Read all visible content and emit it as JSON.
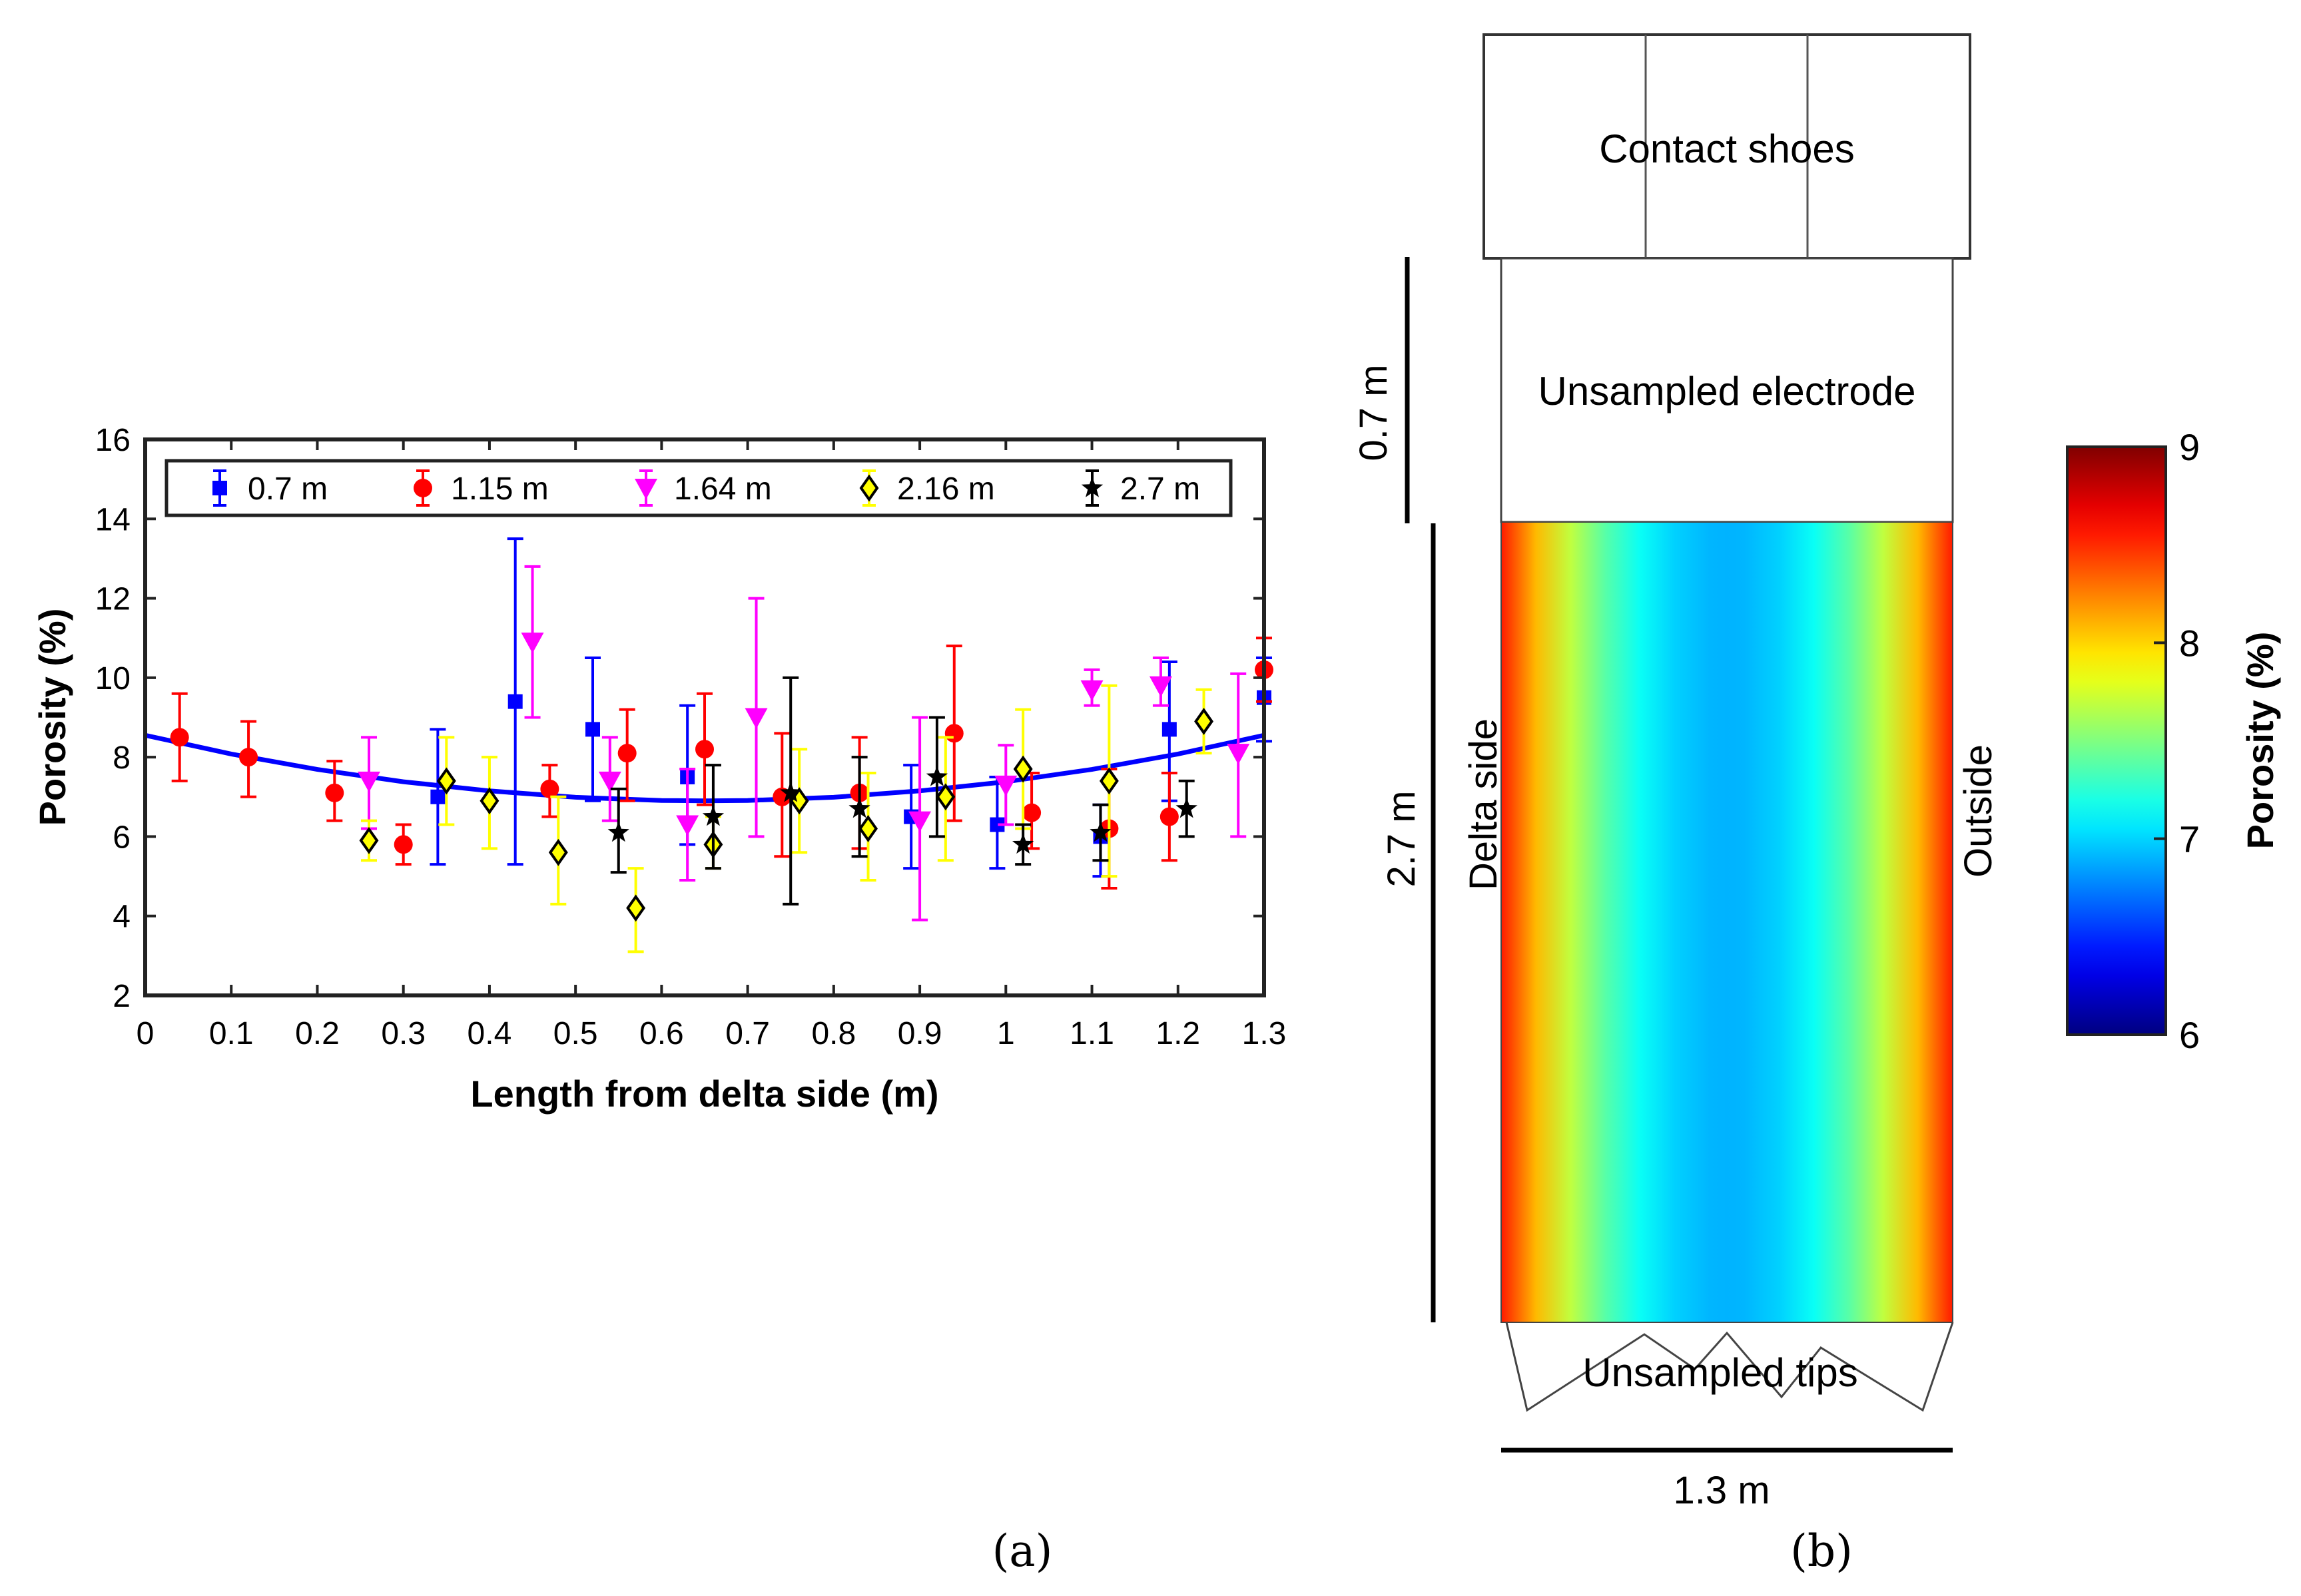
{
  "panel_a_label": "(a)",
  "panel_b_label": "(b)",
  "chart_data": [
    {
      "type": "scatter",
      "title": "",
      "xlabel": "Length from delta side (m)",
      "ylabel": "Porosity (%)",
      "xlim": [
        0,
        1.3
      ],
      "ylim": [
        2,
        16
      ],
      "xticks": [
        0,
        0.1,
        0.2,
        0.3,
        0.4,
        0.5,
        0.6,
        0.7,
        0.8,
        0.9,
        1,
        1.1,
        1.2,
        1.3
      ],
      "xtick_labels": [
        "0",
        "0.1",
        "0.2",
        "0.3",
        "0.4",
        "0.5",
        "0.6",
        "0.7",
        "0.8",
        "0.9",
        "1",
        "1.1",
        "1.2",
        "1.3"
      ],
      "yticks": [
        2,
        4,
        6,
        8,
        10,
        12,
        14,
        16
      ],
      "ytick_labels": [
        "2",
        "4",
        "6",
        "8",
        "10",
        "12",
        "14",
        "16"
      ],
      "grid": false,
      "legend_position": "top",
      "series": [
        {
          "name": "0.7 m",
          "color": "#0000ff",
          "marker": "square",
          "points": [
            {
              "x": 0.34,
              "y": 7.0,
              "lo": 5.3,
              "hi": 8.7
            },
            {
              "x": 0.43,
              "y": 9.4,
              "lo": 5.3,
              "hi": 13.5
            },
            {
              "x": 0.52,
              "y": 8.7,
              "lo": 6.9,
              "hi": 10.5
            },
            {
              "x": 0.63,
              "y": 7.5,
              "lo": 5.8,
              "hi": 9.3
            },
            {
              "x": 0.89,
              "y": 6.5,
              "lo": 5.2,
              "hi": 7.8
            },
            {
              "x": 0.99,
              "y": 6.3,
              "lo": 5.2,
              "hi": 7.5
            },
            {
              "x": 1.11,
              "y": 6.0,
              "lo": 5.0,
              "hi": 6.8
            },
            {
              "x": 1.19,
              "y": 8.7,
              "lo": 6.9,
              "hi": 10.4
            },
            {
              "x": 1.3,
              "y": 9.5,
              "lo": 8.4,
              "hi": 10.5
            }
          ]
        },
        {
          "name": "1.15 m",
          "color": "#ff0000",
          "marker": "circle",
          "points": [
            {
              "x": 0.04,
              "y": 8.5,
              "lo": 7.4,
              "hi": 9.6
            },
            {
              "x": 0.12,
              "y": 8.0,
              "lo": 7.0,
              "hi": 8.9
            },
            {
              "x": 0.22,
              "y": 7.1,
              "lo": 6.4,
              "hi": 7.9
            },
            {
              "x": 0.3,
              "y": 5.8,
              "lo": 5.3,
              "hi": 6.3
            },
            {
              "x": 0.47,
              "y": 7.2,
              "lo": 6.5,
              "hi": 7.8
            },
            {
              "x": 0.56,
              "y": 8.1,
              "lo": 6.9,
              "hi": 9.2
            },
            {
              "x": 0.65,
              "y": 8.2,
              "lo": 6.8,
              "hi": 9.6
            },
            {
              "x": 0.74,
              "y": 7.0,
              "lo": 5.5,
              "hi": 8.6
            },
            {
              "x": 0.83,
              "y": 7.1,
              "lo": 5.7,
              "hi": 8.5
            },
            {
              "x": 0.94,
              "y": 8.6,
              "lo": 6.4,
              "hi": 10.8
            },
            {
              "x": 1.03,
              "y": 6.6,
              "lo": 5.7,
              "hi": 7.6
            },
            {
              "x": 1.12,
              "y": 6.2,
              "lo": 4.7,
              "hi": 7.7
            },
            {
              "x": 1.19,
              "y": 6.5,
              "lo": 5.4,
              "hi": 7.6
            },
            {
              "x": 1.3,
              "y": 10.2,
              "lo": 9.4,
              "hi": 11.0
            }
          ]
        },
        {
          "name": "1.64 m",
          "color": "#ff00ff",
          "marker": "triangle-down",
          "points": [
            {
              "x": 0.26,
              "y": 7.4,
              "lo": 6.2,
              "hi": 8.5
            },
            {
              "x": 0.45,
              "y": 10.9,
              "lo": 9.0,
              "hi": 12.8
            },
            {
              "x": 0.54,
              "y": 7.4,
              "lo": 6.4,
              "hi": 8.5
            },
            {
              "x": 0.63,
              "y": 6.3,
              "lo": 4.9,
              "hi": 7.7
            },
            {
              "x": 0.71,
              "y": 9.0,
              "lo": 6.0,
              "hi": 12.0
            },
            {
              "x": 0.9,
              "y": 6.4,
              "lo": 3.9,
              "hi": 9.0
            },
            {
              "x": 1.0,
              "y": 7.3,
              "lo": 6.3,
              "hi": 8.3
            },
            {
              "x": 1.1,
              "y": 9.7,
              "lo": 9.3,
              "hi": 10.2
            },
            {
              "x": 1.18,
              "y": 9.8,
              "lo": 9.3,
              "hi": 10.5
            },
            {
              "x": 1.27,
              "y": 8.1,
              "lo": 6.0,
              "hi": 10.1
            }
          ]
        },
        {
          "name": "2.16 m",
          "color": "#ffff00",
          "marker": "diamond",
          "points": [
            {
              "x": 0.26,
              "y": 5.9,
              "lo": 5.4,
              "hi": 6.4
            },
            {
              "x": 0.35,
              "y": 7.4,
              "lo": 6.3,
              "hi": 8.5
            },
            {
              "x": 0.4,
              "y": 6.9,
              "lo": 5.7,
              "hi": 8.0
            },
            {
              "x": 0.48,
              "y": 5.6,
              "lo": 4.3,
              "hi": 7.0
            },
            {
              "x": 0.57,
              "y": 4.2,
              "lo": 3.1,
              "hi": 5.2
            },
            {
              "x": 0.66,
              "y": 5.8,
              "lo": 5.2,
              "hi": 6.5
            },
            {
              "x": 0.76,
              "y": 6.9,
              "lo": 5.6,
              "hi": 8.2
            },
            {
              "x": 0.84,
              "y": 6.2,
              "lo": 4.9,
              "hi": 7.6
            },
            {
              "x": 0.93,
              "y": 7.0,
              "lo": 5.4,
              "hi": 8.5
            },
            {
              "x": 1.02,
              "y": 7.7,
              "lo": 6.2,
              "hi": 9.2
            },
            {
              "x": 1.12,
              "y": 7.4,
              "lo": 5.0,
              "hi": 9.8
            },
            {
              "x": 1.23,
              "y": 8.9,
              "lo": 8.1,
              "hi": 9.7
            }
          ]
        },
        {
          "name": "2.7 m",
          "color": "#000000",
          "marker": "pentagram",
          "points": [
            {
              "x": 0.55,
              "y": 6.1,
              "lo": 5.1,
              "hi": 7.2
            },
            {
              "x": 0.66,
              "y": 6.5,
              "lo": 5.2,
              "hi": 7.8
            },
            {
              "x": 0.75,
              "y": 7.1,
              "lo": 4.3,
              "hi": 10.0
            },
            {
              "x": 0.83,
              "y": 6.7,
              "lo": 5.5,
              "hi": 8.0
            },
            {
              "x": 0.92,
              "y": 7.5,
              "lo": 6.0,
              "hi": 9.0
            },
            {
              "x": 1.02,
              "y": 5.8,
              "lo": 5.3,
              "hi": 6.3
            },
            {
              "x": 1.11,
              "y": 6.1,
              "lo": 5.4,
              "hi": 6.8
            },
            {
              "x": 1.21,
              "y": 6.7,
              "lo": 6.0,
              "hi": 7.4
            }
          ]
        }
      ],
      "fit_curve": {
        "color": "#0000ff",
        "x": [
          0,
          0.1,
          0.2,
          0.3,
          0.4,
          0.5,
          0.6,
          0.65,
          0.7,
          0.8,
          0.9,
          1.0,
          1.1,
          1.2,
          1.3
        ],
        "y": [
          8.55,
          8.08,
          7.69,
          7.38,
          7.15,
          6.99,
          6.91,
          6.9,
          6.91,
          6.99,
          7.15,
          7.38,
          7.69,
          8.08,
          8.55
        ]
      }
    },
    {
      "type": "heatmap",
      "colorbar_label": "Porosity (%)",
      "clim": [
        6,
        9
      ],
      "colorbar_ticks": [
        "6",
        "7",
        "8",
        "9"
      ],
      "colormap": "jet",
      "profile_x_m": [
        0,
        0.1,
        0.2,
        0.3,
        0.4,
        0.5,
        0.6,
        0.65,
        0.7,
        0.8,
        0.9,
        1.0,
        1.1,
        1.2,
        1.3
      ],
      "profile_porosity": [
        8.55,
        8.08,
        7.69,
        7.38,
        7.15,
        6.99,
        6.91,
        6.9,
        6.91,
        6.99,
        7.15,
        7.38,
        7.69,
        8.08,
        8.55
      ],
      "labels": {
        "contact_shoes": "Contact shoes",
        "unsampled_electrode": "Unsampled electrode",
        "unsampled_tips": "Unsampled tips",
        "delta_side": "Delta side",
        "outside": "Outside",
        "dim_top": "0.7 m",
        "dim_length": "2.7 m",
        "dim_width": "1.3 m"
      }
    }
  ]
}
